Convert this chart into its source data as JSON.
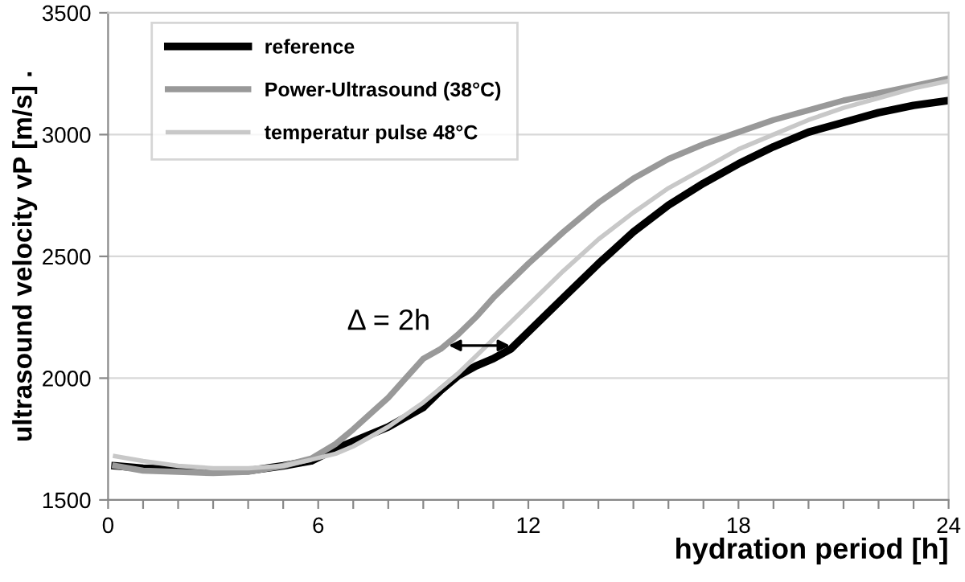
{
  "chart_data": {
    "type": "line",
    "xlabel": "hydration period [h]",
    "ylabel": "ultrasound velocity vP [m/s] .",
    "x": [
      0.2,
      1,
      2,
      3,
      4,
      5,
      5.8,
      6.5,
      7,
      8,
      9,
      9.5,
      10,
      10.5,
      11,
      11.5,
      12,
      13,
      14,
      15,
      16,
      17,
      18,
      19,
      20,
      21,
      22,
      23,
      24
    ],
    "series": [
      {
        "name": "reference",
        "color": "#000000",
        "values": [
          1640,
          1630,
          1625,
          1620,
          1620,
          1640,
          1660,
          1710,
          1740,
          1800,
          1880,
          1950,
          2010,
          2050,
          2080,
          2120,
          2190,
          2330,
          2470,
          2600,
          2710,
          2800,
          2880,
          2950,
          3010,
          3050,
          3090,
          3120,
          3140
        ]
      },
      {
        "name": "Power-Ultrasound (38°C)",
        "color": "#999999",
        "values": [
          1640,
          1620,
          1615,
          1610,
          1615,
          1640,
          1670,
          1730,
          1790,
          1920,
          2080,
          2120,
          2180,
          2250,
          2330,
          2400,
          2470,
          2600,
          2720,
          2820,
          2900,
          2960,
          3010,
          3060,
          3100,
          3140,
          3170,
          3200,
          3230
        ]
      },
      {
        "name": "temperatur pulse 48°C",
        "color": "#c8c8c8",
        "values": [
          1680,
          1660,
          1640,
          1630,
          1630,
          1640,
          1665,
          1690,
          1720,
          1800,
          1900,
          1960,
          2020,
          2090,
          2160,
          2230,
          2300,
          2440,
          2570,
          2680,
          2780,
          2860,
          2940,
          3000,
          3060,
          3110,
          3150,
          3190,
          3220
        ]
      }
    ],
    "xlim": [
      0,
      24
    ],
    "ylim": [
      1500,
      3500
    ],
    "xticks": [
      0,
      {
        "value": 1,
        "label": null
      },
      {
        "value": 2,
        "label": null
      },
      {
        "value": 3,
        "label": null
      },
      {
        "value": 4,
        "label": null
      },
      {
        "value": 5,
        "label": null
      },
      6,
      {
        "value": 7,
        "label": null
      },
      {
        "value": 8,
        "label": null
      },
      {
        "value": 9,
        "label": null
      },
      {
        "value": 10,
        "label": null
      },
      {
        "value": 11,
        "label": null
      },
      12,
      {
        "value": 13,
        "label": null
      },
      {
        "value": 14,
        "label": null
      },
      {
        "value": 15,
        "label": null
      },
      {
        "value": 16,
        "label": null
      },
      {
        "value": 17,
        "label": null
      },
      18,
      {
        "value": 19,
        "label": null
      },
      {
        "value": 20,
        "label": null
      },
      {
        "value": 21,
        "label": null
      },
      {
        "value": 22,
        "label": null
      },
      {
        "value": 23,
        "label": null
      },
      24
    ],
    "yticks": [
      1500,
      2000,
      2500,
      3000,
      3500
    ],
    "grid": "y",
    "legend": "top left",
    "marker": "none",
    "line_style": "solid",
    "annotations": [
      {
        "text": "Δ = 2h",
        "x": 9.6,
        "y": 2134
      }
    ]
  }
}
